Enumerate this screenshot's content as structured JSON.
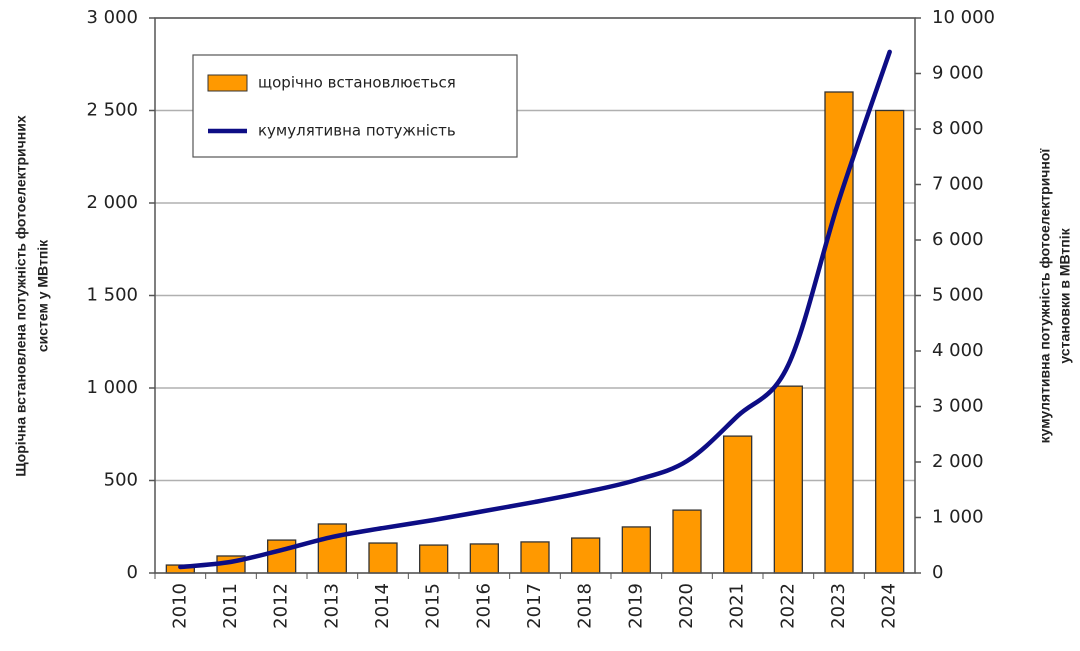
{
  "chart_data": {
    "type": "bar",
    "categories": [
      "2010",
      "2011",
      "2012",
      "2013",
      "2014",
      "2015",
      "2016",
      "2017",
      "2018",
      "2019",
      "2020",
      "2021",
      "2022",
      "2023",
      "2024"
    ],
    "series": [
      {
        "name": "щорічно встановлюється",
        "type": "bar",
        "color": "#ff9900",
        "values": [
          43,
          92,
          178,
          265,
          162,
          151,
          157,
          168,
          189,
          249,
          340,
          740,
          1010,
          2600,
          2500
        ]
      },
      {
        "name": "кумулятивна потужність",
        "type": "line",
        "axis": "y2",
        "color": "#0d0d85",
        "values": [
          108,
          200,
          414,
          650,
          810,
          955,
          1117,
          1280,
          1460,
          1676,
          2018,
          2830,
          3750,
          6720,
          9390
        ]
      }
    ],
    "ylim": [
      0,
      3000
    ],
    "yticks": [
      0,
      500,
      {
        "value": 1000,
        "label": "1 000"
      },
      {
        "value": 1500,
        "label": "1 500"
      },
      {
        "value": 2000,
        "label": "2 000"
      },
      {
        "value": 2500,
        "label": "2 500"
      },
      {
        "value": 3000,
        "label": "3 000"
      }
    ],
    "y2lim": [
      0,
      10000
    ],
    "y2ticks": [
      0,
      {
        "value": 1000,
        "label": "1 000"
      },
      {
        "value": 2000,
        "label": "2 000"
      },
      {
        "value": 3000,
        "label": "3 000"
      },
      {
        "value": 4000,
        "label": "4 000"
      },
      {
        "value": 5000,
        "label": "5 000"
      },
      {
        "value": 6000,
        "label": "6 000"
      },
      {
        "value": 7000,
        "label": "7 000"
      },
      {
        "value": 8000,
        "label": "8 000"
      },
      {
        "value": 9000,
        "label": "9 000"
      },
      {
        "value": 10000,
        "label": "10 000"
      }
    ],
    "ylabel": [
      "Щорічна встановлена потужність фотоелектричних",
      "систем у МВтпік"
    ],
    "y2label": [
      "кумулятивна потужність фотоелектричної",
      "установки в МВтпік"
    ],
    "grid": true,
    "legend": "upper left"
  }
}
